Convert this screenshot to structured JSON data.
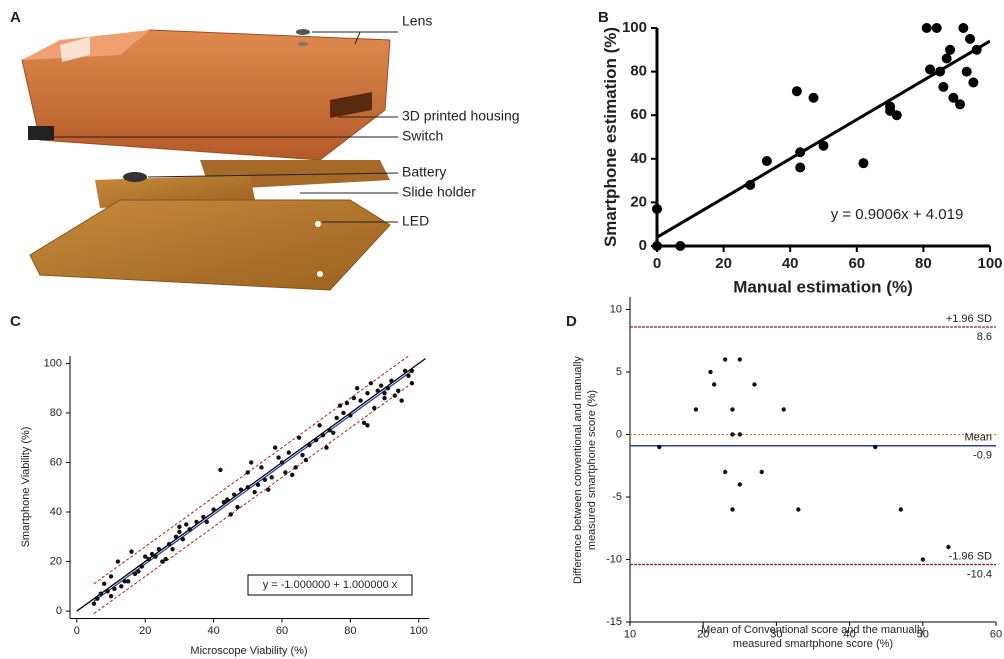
{
  "figure_a": {
    "panel_label": "A",
    "labels": [
      "Lens",
      "3D printed housing",
      "Switch",
      "Battery",
      "Slide holder",
      "LED"
    ]
  },
  "chart_data": [
    {
      "type": "scatter",
      "panel_label": "B",
      "xlabel": "Manual estimation (%)",
      "ylabel": [
        "Smartphone estimation (%)"
      ],
      "x": [
        0,
        0,
        7,
        28,
        33,
        42,
        43,
        43,
        47,
        50,
        62,
        70,
        70,
        72,
        81,
        84,
        82,
        85,
        86,
        87,
        88,
        89,
        91,
        92,
        93,
        94,
        95,
        96
      ],
      "values": [
        17,
        0,
        0,
        28,
        39,
        71,
        43,
        36,
        68,
        46,
        38,
        62,
        64,
        60,
        100,
        100,
        81,
        80,
        73,
        86,
        90,
        68,
        65,
        100,
        80,
        95,
        75,
        90
      ],
      "color": "#000000",
      "lines": [
        {
          "color": "#000000",
          "x": [
            0,
            100
          ],
          "values": [
            4,
            94
          ]
        }
      ],
      "annotation": "y = 0.9006x + 4.019",
      "xlim": [
        0,
        100
      ],
      "ylim": [
        0,
        100
      ],
      "xticks": [
        0,
        20,
        40,
        60,
        80,
        100
      ],
      "yticks": [
        0,
        20,
        40,
        60,
        80,
        100
      ]
    },
    {
      "type": "scatter",
      "panel_label": "C",
      "xlabel": "Microscope Viability (%)",
      "ylabel": [
        "Smartphone Viability (%)"
      ],
      "x": [
        5,
        6,
        7,
        8,
        9,
        10,
        10,
        11,
        12,
        13,
        14,
        15,
        16,
        17,
        18,
        19,
        20,
        21,
        22,
        23,
        24,
        25,
        26,
        27,
        28,
        29,
        30,
        30,
        31,
        32,
        33,
        35,
        37,
        38,
        40,
        42,
        43,
        44,
        45,
        46,
        47,
        48,
        50,
        50,
        51,
        52,
        53,
        54,
        55,
        56,
        57,
        58,
        59,
        60,
        61,
        62,
        63,
        64,
        65,
        66,
        67,
        68,
        70,
        71,
        72,
        73,
        74,
        75,
        76,
        77,
        78,
        79,
        80,
        81,
        82,
        83,
        84,
        85,
        85,
        86,
        87,
        88,
        89,
        90,
        90,
        91,
        92,
        93,
        94,
        95,
        96,
        97,
        98,
        98
      ],
      "values": [
        3,
        5,
        7,
        11,
        8,
        6,
        14,
        9,
        20,
        10,
        12,
        12,
        24,
        15,
        16,
        18,
        22,
        21,
        23,
        22,
        25,
        20,
        21,
        27,
        25,
        30,
        32,
        34,
        29,
        35,
        33,
        36,
        38,
        36,
        41,
        57,
        44,
        45,
        39,
        47,
        42,
        49,
        50,
        56,
        60,
        48,
        51,
        58,
        53,
        49,
        54,
        66,
        62,
        60,
        56,
        64,
        55,
        58,
        70,
        63,
        61,
        67,
        69,
        75,
        71,
        66,
        73,
        72,
        78,
        83,
        80,
        84,
        79,
        86,
        90,
        85,
        76,
        75,
        88,
        92,
        82,
        89,
        91,
        86,
        88,
        90,
        93,
        87,
        89,
        85,
        97,
        95,
        92,
        97
      ],
      "color": "#111111",
      "lines": [
        {
          "color": "#000000",
          "x": [
            0,
            102
          ],
          "values": [
            0,
            102
          ]
        },
        {
          "color": "#2b3fb0",
          "x": [
            5,
            98
          ],
          "values": [
            4,
            97
          ]
        },
        {
          "color": "#b02020",
          "dash": true,
          "x": [
            5,
            97
          ],
          "values": [
            -1,
            91
          ]
        },
        {
          "color": "#b02020",
          "dash": true,
          "x": [
            5,
            97
          ],
          "values": [
            11,
            103
          ]
        }
      ],
      "annotation": "y = -1.000000  +  1.000000  x",
      "xlim": [
        -2,
        103
      ],
      "ylim": [
        -3,
        103
      ],
      "xticks": [
        0,
        20,
        40,
        60,
        80,
        100
      ],
      "yticks": [
        0,
        20,
        40,
        60,
        80,
        100
      ]
    },
    {
      "type": "scatter",
      "panel_label": "D",
      "xlabel": [
        "Mean of Conventional score and the manually",
        "measured smartphone score (%)"
      ],
      "ylabel": [
        "Difference between conventional and manually",
        "measured smartphone score (%)"
      ],
      "x": [
        14,
        19,
        21,
        21.5,
        23,
        23,
        24,
        24,
        24,
        25,
        25,
        25,
        27,
        28,
        31,
        33,
        43.5,
        47,
        50,
        53.5
      ],
      "values": [
        -1,
        2,
        5,
        4,
        -3,
        6,
        -6,
        2,
        0,
        0,
        6,
        -4,
        4,
        -3,
        2,
        -6,
        -1,
        -6,
        -10,
        -9
      ],
      "color": "#111111",
      "zero_line": {
        "value": 0,
        "color": "#e0762a"
      },
      "hlines": [
        {
          "label": "+1.96 SD",
          "value": 8.6,
          "color": "#9b2020"
        },
        {
          "label": "Mean",
          "value": -0.9,
          "color": "#2b3fb0"
        },
        {
          "label": "-1.96 SD",
          "value": -10.4,
          "color": "#9b2020"
        }
      ],
      "xlim": [
        10,
        60
      ],
      "ylim": [
        -15,
        11
      ],
      "xticks": [
        10,
        20,
        30,
        40,
        50,
        60
      ],
      "yticks": [
        -15,
        -10,
        -5,
        0,
        5,
        10
      ]
    }
  ]
}
